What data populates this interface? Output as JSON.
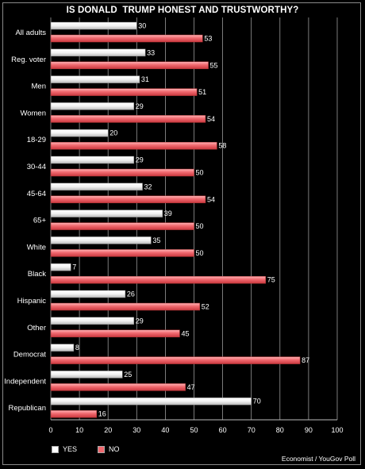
{
  "chart_data": {
    "type": "bar",
    "orientation": "horizontal",
    "title": "IS DONALD  TRUMP HONEST AND TRUSTWORTHY?",
    "categories": [
      "All adults",
      "Reg. voter",
      "Men",
      "Women",
      "18-29",
      "30-44",
      "45-64",
      "65+",
      "White",
      "Black",
      "Hispanic",
      "Other",
      "Democrat",
      "Independent",
      "Republican"
    ],
    "series": [
      {
        "name": "YES",
        "color": "#ffffff",
        "values": [
          30,
          33,
          31,
          29,
          20,
          29,
          32,
          39,
          35,
          7,
          26,
          29,
          8,
          25,
          70
        ]
      },
      {
        "name": "NO",
        "color": "#f0686e",
        "values": [
          53,
          55,
          51,
          54,
          58,
          50,
          54,
          50,
          50,
          75,
          52,
          45,
          87,
          47,
          16
        ]
      }
    ],
    "xlim": [
      0,
      100
    ],
    "xticks": [
      0,
      10,
      20,
      30,
      40,
      50,
      60,
      70,
      80,
      90,
      100
    ],
    "grid": true,
    "legend_position": "bottom-left",
    "source": "Economist / YouGov Poll"
  }
}
